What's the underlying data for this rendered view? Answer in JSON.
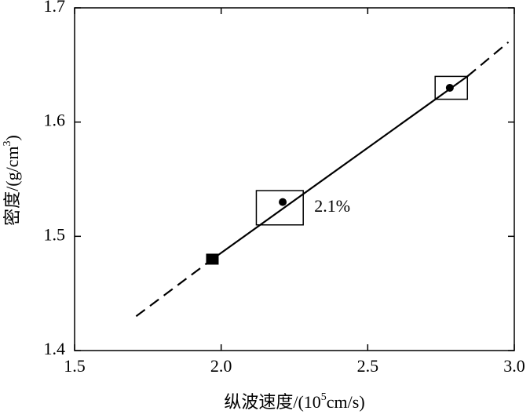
{
  "chart_data": {
    "type": "scatter",
    "xlabel": [
      "纵波速度/(10",
      "5",
      "cm/s)"
    ],
    "ylabel": [
      "密度/(g/cm",
      "3",
      ")"
    ],
    "xlim": [
      1.5,
      3.0
    ],
    "xticks": [
      1.5,
      {
        "value": 2,
        "label": "2.0"
      },
      2.5,
      {
        "value": 3,
        "label": "3.0"
      }
    ],
    "ylim": [
      1.4,
      1.7
    ],
    "yticks": [
      1.4,
      1.5,
      1.6,
      1.7
    ],
    "points": [
      {
        "marker": "square",
        "x": 1.97,
        "y": 1.48
      },
      {
        "marker": "circle",
        "x": 2.21,
        "y": 1.53
      },
      {
        "marker": "circle",
        "x": 2.78,
        "y": 1.63
      }
    ],
    "lines": [
      {
        "style": "dashed",
        "x": [
          1.71,
          1.97
        ],
        "y": [
          1.43,
          1.48
        ]
      },
      {
        "style": "solid",
        "x": [
          1.97,
          2.84
        ],
        "y": [
          1.48,
          1.64
        ]
      },
      {
        "style": "dashed",
        "x": [
          2.84,
          2.98
        ],
        "y": [
          1.64,
          1.67
        ]
      }
    ],
    "boxes": [
      {
        "x": [
          2.12,
          2.28
        ],
        "y": [
          1.51,
          1.54
        ],
        "label": "2.1%"
      },
      {
        "x": [
          2.73,
          2.84
        ],
        "y": [
          1.62,
          1.64
        ]
      }
    ],
    "color": "#000000"
  }
}
